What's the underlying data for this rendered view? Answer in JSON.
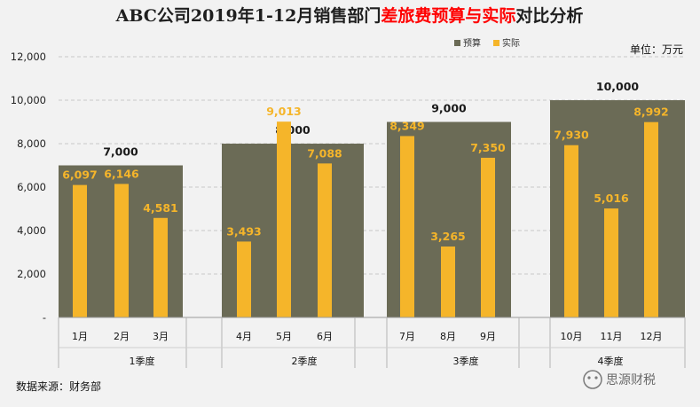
{
  "title": {
    "part1": "ABC公司2019年1-12月销售部门",
    "part2": "差旅费预算与实际",
    "part3": "对比分析"
  },
  "unit": "单位：万元",
  "source": "数据来源：财务部",
  "watermark": "思源财税",
  "colors": {
    "budget": "#6b6b56",
    "actual": "#f5b52a",
    "background": "#f2f2f2",
    "title_red": "#ff0000"
  },
  "chart_data": {
    "type": "bar",
    "ylim": [
      0,
      12000
    ],
    "yticks": [
      0,
      2000,
      4000,
      6000,
      8000,
      10000,
      12000
    ],
    "ytick_labels": [
      "-",
      "2,000",
      "4,000",
      "6,000",
      "8,000",
      "10,000",
      "12,000"
    ],
    "legend": {
      "position": "top-right",
      "entries": [
        "预算",
        "实际"
      ]
    },
    "categories": [
      "1月",
      "2月",
      "3月",
      "4月",
      "5月",
      "6月",
      "7月",
      "8月",
      "9月",
      "10月",
      "11月",
      "12月"
    ],
    "quarters": [
      {
        "label": "1季度",
        "budget": 7000,
        "budget_label": "7,000"
      },
      {
        "label": "2季度",
        "budget": 8000,
        "budget_label": "8,000"
      },
      {
        "label": "3季度",
        "budget": 9000,
        "budget_label": "9,000"
      },
      {
        "label": "4季度",
        "budget": 10000,
        "budget_label": "10,000"
      }
    ],
    "series": [
      {
        "name": "实际",
        "values": [
          6097,
          6146,
          4581,
          3493,
          9013,
          7088,
          8349,
          3265,
          7350,
          7930,
          5016,
          8992
        ],
        "labels": [
          "6,097",
          "6,146",
          "4,581",
          "3,493",
          "9,013",
          "7,088",
          "8,349",
          "3,265",
          "7,350",
          "7,930",
          "5,016",
          "8,992"
        ]
      }
    ]
  }
}
